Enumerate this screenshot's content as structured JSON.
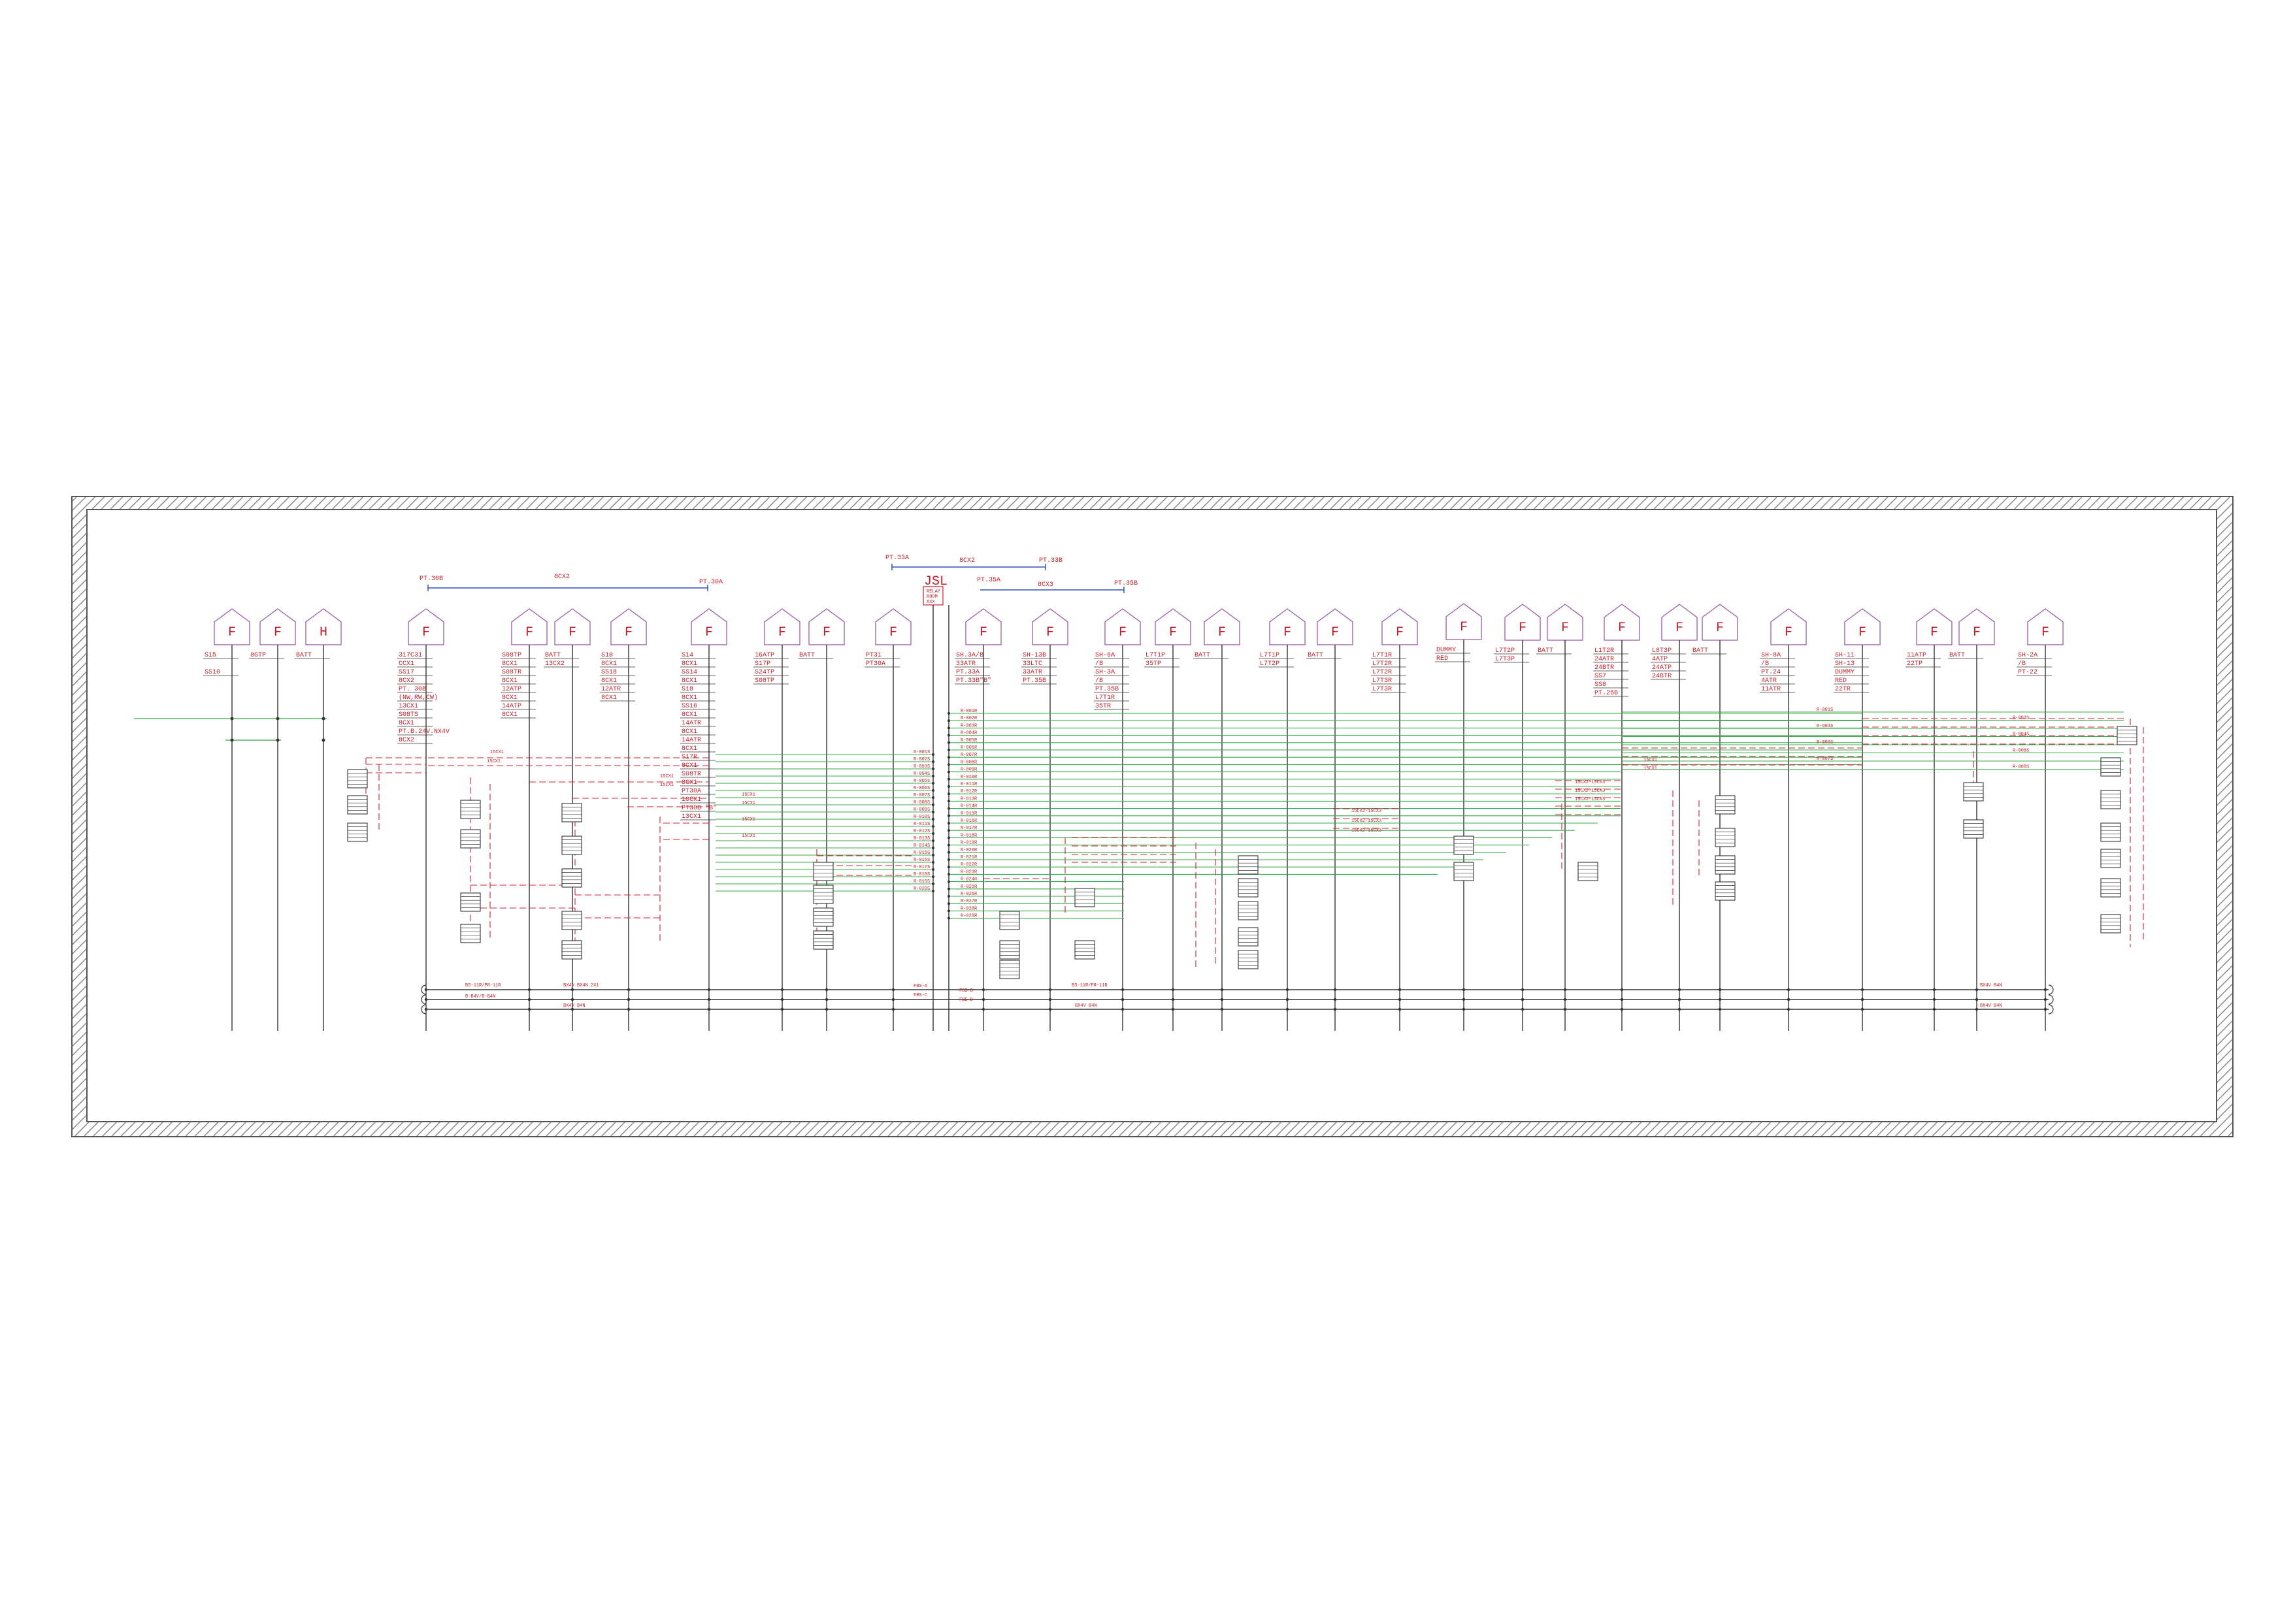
{
  "drawing": {
    "bus_top_labels": {
      "left_start": "PT.30B",
      "left_mid": "8CX2",
      "left_end": "PT.30A",
      "center_start": "PT.33A",
      "center_mid": "8CX2",
      "center_end": "PT.33B",
      "right_start": "PT.35A",
      "right_mid": "8CX3",
      "right_end": "PT.35B"
    },
    "jsl_box": {
      "title": "JSL",
      "lines": [
        "RELAY",
        "ROOM",
        "XXX"
      ]
    },
    "house_letters": [
      "F",
      "F",
      "H",
      "F",
      "F",
      "F",
      "F",
      "F",
      "F",
      "F",
      "F",
      "F",
      "F",
      "F",
      "F",
      "F",
      "F",
      "F",
      "F",
      "F",
      "F",
      "F",
      "F",
      "F",
      "F",
      "F",
      "F",
      "F",
      "F",
      "F",
      "F",
      "F",
      "F"
    ],
    "column_labels": [
      {
        "lines": [
          "S15",
          "",
          "SS10"
        ]
      },
      {
        "lines": [
          "8GTP"
        ]
      },
      {
        "lines": [
          "BATT"
        ]
      },
      {
        "lines": [
          "317C31",
          "CCX1",
          "SS17",
          "8CX2",
          "PT. 30B",
          "(NW,RW,CW)",
          "13CX1",
          "S08TS",
          "8CX1",
          "PT.B.24V.NX4V",
          "8CX2"
        ]
      },
      {
        "lines": [
          "S08TP",
          "8CX1",
          "S08TR",
          "8CX1",
          "12ATP",
          "8CX1",
          "14ATP",
          "8CX1"
        ]
      },
      {
        "lines": [
          "BATT",
          "13CX2"
        ]
      },
      {
        "lines": [
          "S18",
          "8CX1",
          "SS18",
          "8CX1",
          "12ATR",
          "8CX1"
        ]
      },
      {
        "lines": [
          "S14",
          "8CX1",
          "SS14",
          "8CX1",
          "S18",
          "8CX1",
          "SS16",
          "8CX1",
          "14ATR",
          "8CX1",
          "14ATR",
          "8CX1",
          "S17R",
          "8CX1",
          "S08TR",
          "8CX1",
          "PT30A",
          "10CX1",
          "PT30B \"B\"",
          "13CX1"
        ]
      },
      {
        "lines": [
          "16ATP",
          "S17P",
          "S24TP",
          "S08TP"
        ]
      },
      {
        "lines": [
          "BATT"
        ]
      },
      {
        "lines": [
          "PT31",
          "PT30A"
        ]
      },
      {
        "lines": [
          "SH.3A/B",
          "33ATR",
          "PT.33A",
          "PT.33B\"B\""
        ]
      },
      {
        "lines": [
          "SH-13B",
          "33LTC",
          "33ATR",
          "PT.35B"
        ]
      },
      {
        "lines": [
          "SH-6A",
          "/B",
          "SH-3A",
          "/B",
          "PT.35B",
          "L7T1R",
          "35TR"
        ]
      },
      {
        "lines": [
          "L7T1P",
          "35TP"
        ]
      },
      {
        "lines": [
          "BATT"
        ]
      },
      {
        "lines": [
          "L7T1P",
          "L7T2P"
        ]
      },
      {
        "lines": [
          "BATT"
        ]
      },
      {
        "lines": [
          "L7T1R",
          "L7T2R",
          "L7T2R",
          "L7T3R",
          "L7T3R"
        ]
      },
      {
        "lines": [
          "DUMMY",
          "RED"
        ]
      },
      {
        "lines": [
          "L7T2P",
          "L7T3P"
        ]
      },
      {
        "lines": [
          "BATT"
        ]
      },
      {
        "lines": [
          "L1T2R",
          "24ATR",
          "24BTR",
          "SS7",
          "SS8",
          "PT.25B"
        ]
      },
      {
        "lines": [
          "L8T3P",
          "4ATP",
          "24ATP",
          "24BTR"
        ]
      },
      {
        "lines": [
          "BATT"
        ]
      },
      {
        "lines": [
          "SH-8A",
          "/B",
          "PT.24",
          "4ATR",
          "11ATR"
        ]
      },
      {
        "lines": [
          "SH-11",
          "SH-13",
          "DUMMY",
          "RED",
          "22TR"
        ]
      },
      {
        "lines": [
          "11ATP",
          "22TP"
        ]
      },
      {
        "lines": [
          "BATT"
        ]
      },
      {
        "lines": [
          "SH-2A",
          "/B",
          "PT-22"
        ]
      }
    ],
    "wire_labels": {
      "jsl_left": [
        "R-001S",
        "R-002S",
        "R-003S",
        "R-004S",
        "R-005S",
        "R-006S",
        "R-007S",
        "R-008S",
        "R-009S",
        "R-010S",
        "R-011S",
        "R-012S",
        "R-013S",
        "R-014S",
        "R-015S",
        "R-016S",
        "R-017S",
        "R-018S",
        "R-019S",
        "R-020S"
      ],
      "jsl_right": [
        "R-001R",
        "R-002R",
        "R-003R",
        "R-004R",
        "R-005R",
        "R-006R",
        "R-007R",
        "R-008R",
        "R-009R",
        "R-010R",
        "R-011R",
        "R-012R",
        "R-013R",
        "R-014R",
        "R-015R",
        "R-016R",
        "R-017R",
        "R-018R",
        "R-019R",
        "R-020R",
        "R-021R",
        "R-022R",
        "R-023R",
        "R-024R",
        "R-025R",
        "R-026R",
        "R-027R",
        "R-028R",
        "R-029R"
      ],
      "short": [
        "15CX1",
        "15CX1",
        "15CX1",
        "15CX1",
        "15CX1",
        "15CX1",
        "15CX1",
        "15CX1",
        "15CX1",
        "15CX1"
      ],
      "cable": [
        "15CX2-15CX3",
        "15CX2-15CX3",
        "15CX2-15CX3",
        "15CX2-15CX3",
        "15CX2-15CX3",
        "15CX2-15CX3"
      ],
      "far_right": [
        "R-001S",
        "R-002S",
        "R-003S",
        "R-004S",
        "R-005S",
        "R-006S",
        "R-007S",
        "R-008S",
        "15CX1",
        "15CX1",
        "15CX1",
        "15CX1"
      ]
    },
    "bottom_bus": {
      "line1_left": "BS-11R/PR-11R",
      "line1_mid": "BX4V  BX4N  2X1",
      "line2_left": "B-B4V/B-B4N",
      "line3_left": "BX4V  B4N",
      "jsl_box": [
        "FBS-A",
        "FBS-B",
        "FBS-C",
        "FBS-D"
      ],
      "line1_right": "BS-11R/PR-11R",
      "line3_right": "BX4V  B4N",
      "far_right_1": "BX4V  B4N",
      "far_right_2": "BX4V  B4N"
    }
  }
}
